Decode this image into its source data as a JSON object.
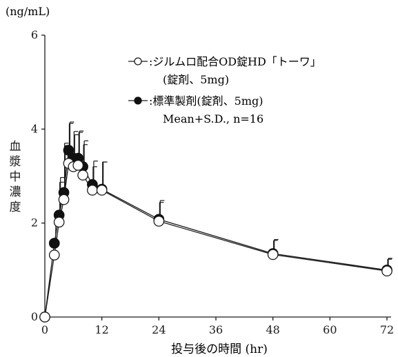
{
  "chart_data": {
    "type": "line",
    "unit_label": "(ng/mL)",
    "xlabel": "投与後の時間 (hr)",
    "ylabel_chars": [
      "血",
      "漿",
      "中",
      "濃",
      "度"
    ],
    "xlim": [
      0,
      72
    ],
    "ylim": [
      0,
      6
    ],
    "x_ticks": [
      0,
      12,
      24,
      36,
      48,
      60,
      72
    ],
    "y_ticks": [
      0,
      2,
      4,
      6
    ],
    "grid": false,
    "legend_position": "top-right",
    "legend": {
      "series1_label": ":ジルムロ配合OD錠HD「トーワ」",
      "series1_sub": "(錠剤、5mg)",
      "series2_label": ":標準製剤(錠剤、5mg)",
      "stats_note": "Mean+S.D., n=16"
    },
    "x": [
      0,
      2,
      3,
      4,
      5,
      6,
      7,
      8,
      10,
      12,
      24,
      48,
      72
    ],
    "series": [
      {
        "name": "ジルムロ配合OD錠HD「トーワ」",
        "marker": "open",
        "values": [
          0,
          1.32,
          2.02,
          2.5,
          3.27,
          3.2,
          3.23,
          3.02,
          2.7,
          2.7,
          2.04,
          1.33,
          0.98
        ],
        "sd": [
          0,
          0,
          0.85,
          1.2,
          0.85,
          0.75,
          0.7,
          0.65,
          0.5,
          0.6,
          0.4,
          0.3,
          0.25
        ]
      },
      {
        "name": "標準製剤(錠剤、5mg)",
        "marker": "filled",
        "values": [
          0,
          1.57,
          2.17,
          2.65,
          3.55,
          3.38,
          3.38,
          3.2,
          2.82,
          2.72,
          2.08,
          1.35,
          1.0
        ],
        "sd": [
          0,
          0.4,
          0.8,
          1.0,
          0.6,
          0.5,
          0.58,
          0.55,
          0.5,
          0.58,
          0.4,
          0.3,
          0.25
        ]
      }
    ],
    "colors": {
      "line": "#1a1a1a",
      "open_fill": "#ffffff",
      "filled_fill": "#111111"
    }
  }
}
